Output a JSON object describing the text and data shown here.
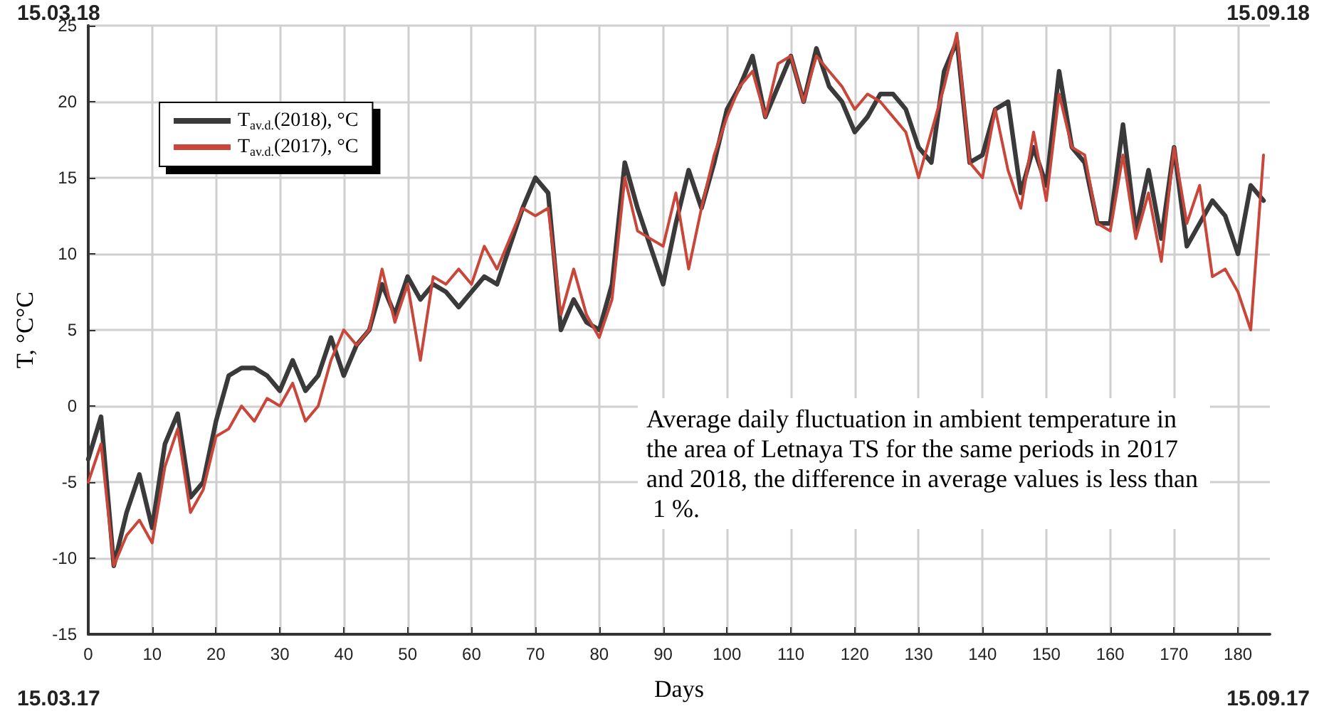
{
  "chart_data": {
    "type": "line",
    "xlabel": "Days",
    "ylabel": "T, °C°C",
    "annotations": [
      "15.03.18",
      "15.09.18",
      "15.03.17",
      "15.09.17",
      "Average daily fluctuation in ambient temperature in the area of Letnaya TS for the same periods in 2017 and 2018, the difference in average values is less than 1 %."
    ],
    "x": [
      0,
      2,
      4,
      6,
      8,
      10,
      12,
      14,
      16,
      18,
      20,
      22,
      24,
      26,
      28,
      30,
      32,
      34,
      36,
      38,
      40,
      42,
      44,
      46,
      48,
      50,
      52,
      54,
      56,
      58,
      60,
      62,
      64,
      66,
      68,
      70,
      72,
      74,
      76,
      78,
      80,
      82,
      84,
      86,
      88,
      90,
      92,
      94,
      96,
      98,
      100,
      102,
      104,
      106,
      108,
      110,
      112,
      114,
      116,
      118,
      120,
      122,
      124,
      126,
      128,
      130,
      132,
      134,
      136,
      138,
      140,
      142,
      144,
      146,
      148,
      150,
      152,
      154,
      156,
      158,
      160,
      162,
      164,
      166,
      168,
      170,
      172,
      174,
      176,
      178,
      180,
      182,
      184
    ],
    "series": [
      {
        "name": "T$_{av.d.}$(2018), °C",
        "color": "#3a3a3a",
        "values": [
          -3.5,
          -0.7,
          -10.5,
          -7,
          -4.5,
          -8,
          -2.5,
          -0.5,
          -6,
          -5,
          -1,
          2,
          2.5,
          2.5,
          2,
          1,
          3,
          1,
          2,
          4.5,
          2,
          4,
          5,
          8,
          6,
          8.5,
          7,
          8,
          7.5,
          6.5,
          7.5,
          8.5,
          8,
          10.5,
          13,
          15,
          14,
          5,
          7,
          5.5,
          5,
          8,
          16,
          13,
          10.5,
          8,
          12,
          15.5,
          13,
          16,
          19.5,
          21,
          23,
          19,
          21,
          23,
          20,
          23.5,
          21,
          20,
          18,
          19,
          20.5,
          20.5,
          19.5,
          17,
          16,
          22,
          24,
          16,
          16.5,
          19.5,
          20,
          14,
          17,
          14.5,
          22,
          17,
          16,
          12,
          12,
          18.5,
          11.5,
          15.5,
          11,
          17,
          10.5,
          12,
          13.5,
          12.5,
          10,
          14.5,
          13.5
        ]
      },
      {
        "name": "T$_{av.d.}$(2017), °C",
        "color": "#c8463a",
        "values": [
          -5,
          -2.5,
          -10.5,
          -8.5,
          -7.5,
          -9,
          -4,
          -1.5,
          -7,
          -5.5,
          -2,
          -1.5,
          0,
          -1,
          0.5,
          0,
          1.5,
          -1,
          0,
          3,
          5,
          4,
          5,
          9,
          5.5,
          8,
          3,
          8.5,
          8,
          9,
          8,
          10.5,
          9,
          11,
          13,
          12.5,
          13,
          6,
          9,
          6,
          4.5,
          7,
          15,
          11.5,
          11,
          10.5,
          14,
          9,
          13,
          16.5,
          19,
          21,
          22,
          19,
          22.5,
          23,
          20,
          23,
          22,
          21,
          19.5,
          20.5,
          20,
          19,
          18,
          15,
          18,
          21,
          24.5,
          16,
          15,
          19.5,
          15.5,
          13,
          18,
          13.5,
          20.5,
          17,
          16.5,
          12,
          11.5,
          16.5,
          11,
          14,
          9.5,
          17,
          12,
          14.5,
          8.5,
          9,
          7.5,
          5,
          16.5
        ]
      }
    ],
    "xlim": [
      0,
      185
    ],
    "xticks": [
      0,
      10,
      20,
      30,
      40,
      50,
      60,
      70,
      80,
      90,
      100,
      110,
      120,
      130,
      140,
      150,
      160,
      170,
      180
    ],
    "ylim": [
      -15,
      25
    ],
    "yticks": [
      -15,
      -10,
      -5,
      0,
      5,
      10,
      15,
      20,
      25
    ],
    "grid": true,
    "legend": "top left",
    "marker": "none",
    "line_style": "solid"
  }
}
